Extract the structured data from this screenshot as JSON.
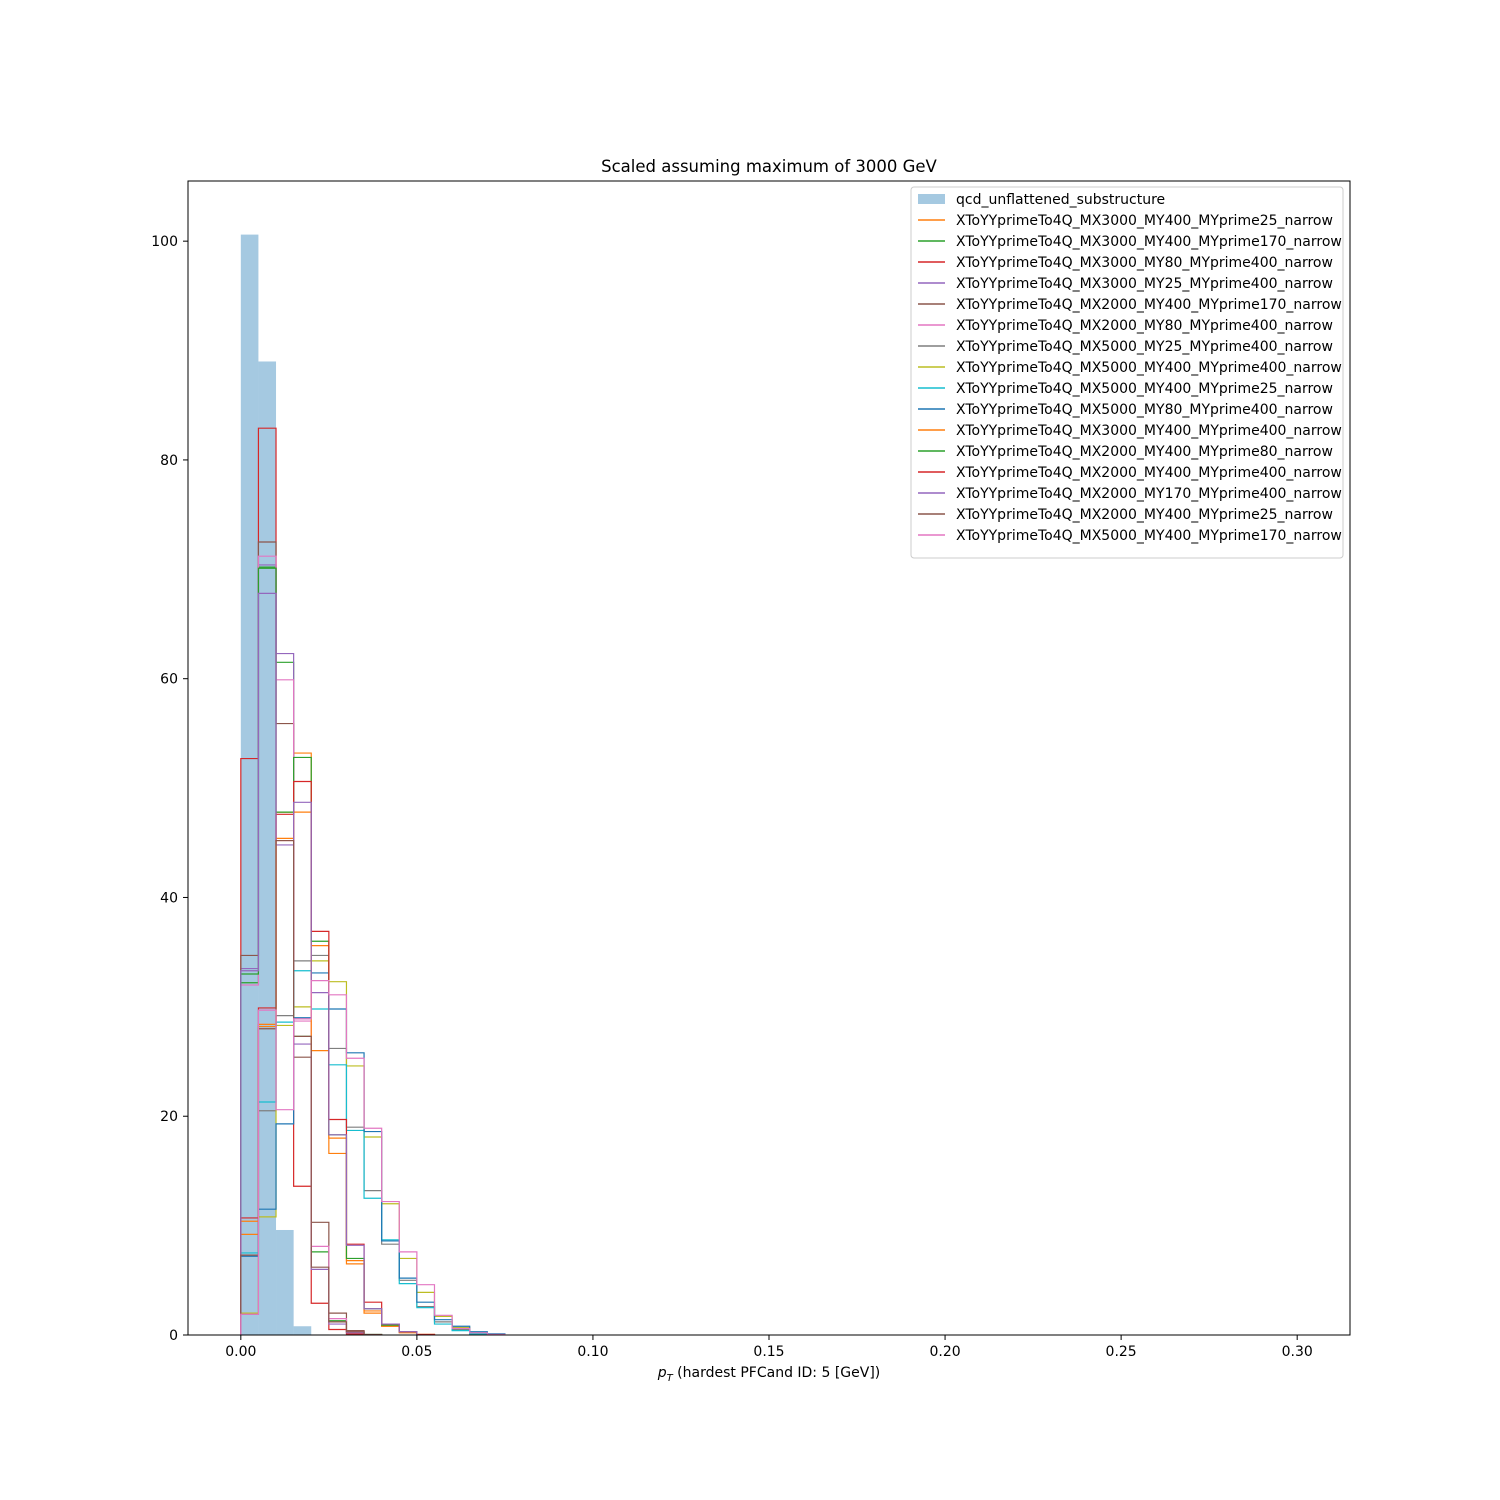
{
  "chart_data": {
    "type": "histogram",
    "title": "Scaled assuming maximum of 3000 GeV",
    "xlabel_main": "p",
    "xlabel_sub": "T",
    "xlabel_rest": " (hardest PFCand ID: 5 [GeV])",
    "ylabel": "",
    "xlim": [
      -0.015,
      0.315
    ],
    "ylim": [
      0,
      105.5
    ],
    "xticks": [
      0.0,
      0.05,
      0.1,
      0.15,
      0.2,
      0.25,
      0.3
    ],
    "xtick_labels": [
      "0.00",
      "0.05",
      "0.10",
      "0.15",
      "0.20",
      "0.25",
      "0.30"
    ],
    "yticks": [
      0,
      20,
      40,
      60,
      80,
      100
    ],
    "ytick_labels": [
      "0",
      "20",
      "40",
      "60",
      "80",
      "100"
    ],
    "bin_width": 0.005,
    "legend_position": "top-right",
    "series": [
      {
        "name": "qcd_unflattened_substructure",
        "style": "filled",
        "color": "#1f77b4",
        "values": [
          100.6,
          89.0,
          9.6,
          0.8,
          0.05,
          0.0
        ]
      },
      {
        "name": "XToYYprimeTo4Q_MX3000_MY400_MYprime25_narrow",
        "color": "#ff7f0e",
        "values": [
          9.2,
          28.4,
          47.8,
          53.2,
          35.6,
          16.6,
          6.5,
          2.2,
          0.8,
          0.25,
          0.05
        ]
      },
      {
        "name": "XToYYprimeTo4Q_MX3000_MY400_MYprime170_narrow",
        "color": "#2ca02c",
        "values": [
          32.2,
          70.2,
          61.5,
          27.3,
          7.6,
          1.3,
          0.3,
          0.05
        ]
      },
      {
        "name": "XToYYprimeTo4Q_MX3000_MY80_MYprime400_narrow",
        "color": "#d62728",
        "values": [
          52.7,
          82.9,
          45.2,
          13.6,
          2.9,
          0.5,
          0.1
        ]
      },
      {
        "name": "XToYYprimeTo4Q_MX3000_MY25_MYprime400_narrow",
        "color": "#9467bd",
        "values": [
          33.5,
          70.4,
          62.3,
          26.6,
          6.0,
          1.0,
          0.2
        ]
      },
      {
        "name": "XToYYprimeTo4Q_MX2000_MY400_MYprime170_narrow",
        "color": "#8c564b",
        "values": [
          34.7,
          72.5,
          55.9,
          25.4,
          10.3,
          2.0,
          0.4,
          0.05
        ]
      },
      {
        "name": "XToYYprimeTo4Q_MX2000_MY80_MYprime400_narrow",
        "color": "#e377c2",
        "values": [
          32.0,
          71.2,
          59.9,
          28.7,
          8.1,
          1.5,
          0.3
        ]
      },
      {
        "name": "XToYYprimeTo4Q_MX5000_MY25_MYprime400_narrow",
        "color": "#7f7f7f",
        "values": [
          1.9,
          20.5,
          29.2,
          34.2,
          34.7,
          26.2,
          19.0,
          13.2,
          8.3,
          5.0,
          2.6,
          1.2,
          0.5,
          0.2,
          0.05
        ]
      },
      {
        "name": "XToYYprimeTo4Q_MX5000_MY400_MYprime400_narrow",
        "color": "#bcbd22",
        "values": [
          2.0,
          10.8,
          28.3,
          30.0,
          34.2,
          32.3,
          24.6,
          18.1,
          12.0,
          7.0,
          3.9,
          1.7,
          0.7,
          0.2,
          0.05
        ]
      },
      {
        "name": "XToYYprimeTo4Q_MX5000_MY400_MYprime25_narrow",
        "color": "#17becf",
        "values": [
          7.5,
          21.3,
          28.6,
          33.3,
          29.8,
          24.7,
          18.7,
          12.5,
          8.7,
          4.7,
          2.5,
          1.0,
          0.4,
          0.1
        ]
      },
      {
        "name": "XToYYprimeTo4Q_MX5000_MY80_MYprime400_narrow",
        "color": "#1f77b4",
        "values": [
          7.2,
          11.5,
          19.3,
          29.0,
          33.1,
          29.8,
          25.8,
          18.6,
          8.6,
          5.2,
          3.0,
          1.4,
          0.8,
          0.3,
          0.1
        ]
      },
      {
        "name": "XToYYprimeTo4Q_MX3000_MY400_MYprime400_narrow",
        "color": "#ff7f0e",
        "values": [
          10.4,
          28.2,
          45.4,
          47.8,
          26.0,
          18.0,
          6.8,
          2.0,
          0.8,
          0.2,
          0.05
        ]
      },
      {
        "name": "XToYYprimeTo4Q_MX2000_MY400_MYprime80_narrow",
        "color": "#2ca02c",
        "values": [
          33.0,
          70.1,
          47.8,
          52.8,
          36.0,
          18.3,
          7.0,
          2.4,
          0.9,
          0.3
        ]
      },
      {
        "name": "XToYYprimeTo4Q_MX2000_MY400_MYprime400_narrow",
        "color": "#d62728",
        "values": [
          10.7,
          29.9,
          47.6,
          50.6,
          36.9,
          19.7,
          8.3,
          3.0,
          1.0,
          0.3,
          0.05
        ]
      },
      {
        "name": "XToYYprimeTo4Q_MX2000_MY170_MYprime400_narrow",
        "color": "#9467bd",
        "values": [
          33.3,
          67.8,
          44.8,
          48.7,
          31.3,
          18.3,
          8.2,
          2.4,
          1.0,
          0.3
        ]
      },
      {
        "name": "XToYYprimeTo4Q_MX2000_MY400_MYprime25_narrow",
        "color": "#8c564b",
        "values": [
          7.3,
          28.0,
          45.2,
          27.3,
          6.2,
          1.2,
          0.3
        ]
      },
      {
        "name": "XToYYprimeTo4Q_MX5000_MY400_MYprime170_narrow",
        "color": "#e377c2",
        "values": [
          1.9,
          29.7,
          20.6,
          28.9,
          32.4,
          31.1,
          25.3,
          18.9,
          12.2,
          7.6,
          4.6,
          1.8,
          0.6,
          0.2,
          0.05
        ]
      }
    ]
  }
}
